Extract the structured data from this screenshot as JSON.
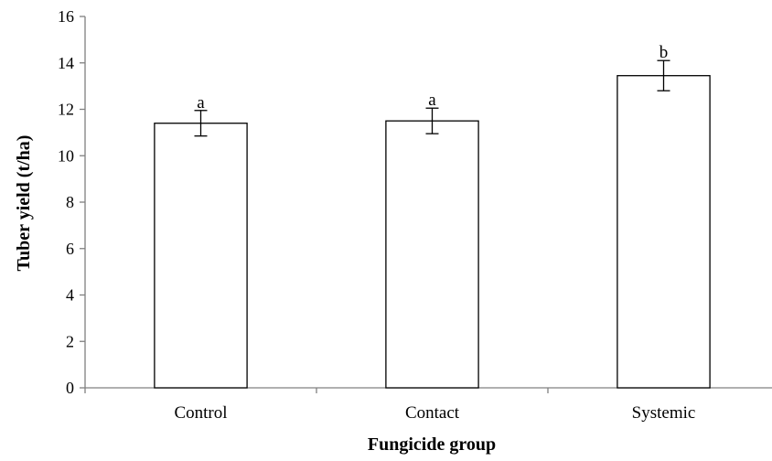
{
  "chart_data": {
    "type": "bar",
    "title": "",
    "xlabel": "Fungicide group",
    "ylabel": "Tuber yield (t/ha)",
    "categories": [
      "Control",
      "Contact",
      "Systemic"
    ],
    "values": [
      11.4,
      11.5,
      13.45
    ],
    "error": [
      0.55,
      0.55,
      0.65
    ],
    "significance_letters": [
      "a",
      "a",
      "b"
    ],
    "ylim": [
      0,
      16
    ],
    "yticks": [
      "0",
      "2",
      "4",
      "6",
      "8",
      "10",
      "12",
      "14",
      "16"
    ],
    "grid": false,
    "legend": "none",
    "colors": {
      "bar_fill": "#ffffff",
      "bar_stroke": "#000000",
      "axis": "#808080"
    }
  }
}
